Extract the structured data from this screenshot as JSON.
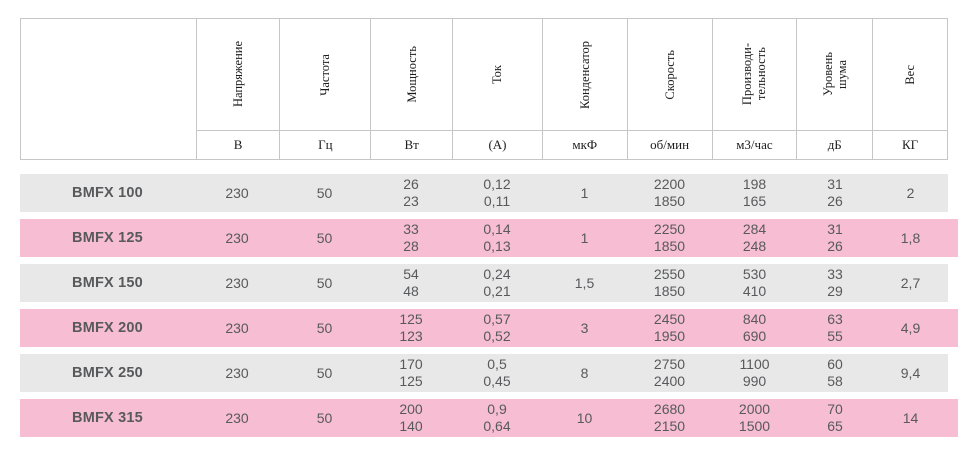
{
  "table": {
    "columns": [
      {
        "name": "",
        "unit": ""
      },
      {
        "name": "Напряжение",
        "unit": "В"
      },
      {
        "name": "Частота",
        "unit": "Гц"
      },
      {
        "name": "Мощность",
        "unit": "Вт"
      },
      {
        "name": "Ток",
        "unit": "(А)"
      },
      {
        "name": "Конденсатор",
        "unit": "мкФ"
      },
      {
        "name": "Скорость",
        "unit": "об/мин"
      },
      {
        "name": "Производи-\nтельность",
        "unit": "м3/час"
      },
      {
        "name": "Уровень\nшума",
        "unit": "дБ"
      },
      {
        "name": "Вес",
        "unit": "КГ"
      }
    ],
    "rows": [
      {
        "model": "BMFX 100",
        "tint": "gray",
        "values": [
          "230",
          "50",
          "26\n23",
          "0,12\n0,11",
          "1",
          "2200\n1850",
          "198\n165",
          "31\n26",
          "2"
        ]
      },
      {
        "model": "BMFX 125",
        "tint": "pink",
        "values": [
          "230",
          "50",
          "33\n28",
          "0,14\n0,13",
          "1",
          "2250\n1850",
          "284\n248",
          "31\n26",
          "1,8"
        ]
      },
      {
        "model": "BMFX 150",
        "tint": "gray",
        "values": [
          "230",
          "50",
          "54\n48",
          "0,24\n0,21",
          "1,5",
          "2550\n1850",
          "530\n410",
          "33\n29",
          "2,7"
        ]
      },
      {
        "model": "BMFX 200",
        "tint": "pink",
        "values": [
          "230",
          "50",
          "125\n123",
          "0,57\n0,52",
          "3",
          "2450\n1950",
          "840\n690",
          "63\n55",
          "4,9"
        ]
      },
      {
        "model": "BMFX 250",
        "tint": "gray",
        "values": [
          "230",
          "50",
          "170\n125",
          "0,5\n0,45",
          "8",
          "2750\n2400",
          "1100\n990",
          "60\n58",
          "9,4"
        ]
      },
      {
        "model": "BMFX 315",
        "tint": "pink",
        "values": [
          "230",
          "50",
          "200\n140",
          "0,9\n0,64",
          "10",
          "2680\n2150",
          "2000\n1500",
          "70\n65",
          "14"
        ]
      }
    ]
  },
  "colors": {
    "row_gray": "#e8e8e8",
    "row_pink": "#f6bdd3",
    "border": "#c6c6c6",
    "data_text": "#58595b",
    "header_text": "#1c1c1e",
    "background": "#ffffff"
  }
}
